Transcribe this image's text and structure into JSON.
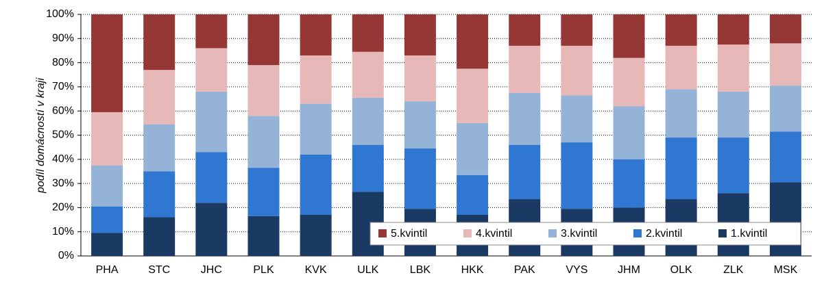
{
  "chart_data": {
    "type": "stacked_bar",
    "y_label": "podíl domácností v kraji",
    "categories": [
      "PHA",
      "STC",
      "JHC",
      "PLK",
      "KVK",
      "ULK",
      "LBK",
      "HKK",
      "PAK",
      "VYS",
      "JHM",
      "OLK",
      "ZLK",
      "MSK"
    ],
    "series": [
      {
        "name": "1.kvintil",
        "color": "#1b3a63",
        "values": [
          9.5,
          16,
          22,
          16.5,
          17,
          26.5,
          19.5,
          17,
          23.5,
          19.5,
          20,
          23.5,
          26,
          30.5
        ]
      },
      {
        "name": "2.kvintil",
        "color": "#2f77d0",
        "values": [
          11,
          19,
          21,
          20,
          25,
          19.5,
          25,
          16.5,
          22.5,
          27.5,
          20,
          25.5,
          23,
          21
        ]
      },
      {
        "name": "3.kvintil",
        "color": "#95b3d7",
        "values": [
          17,
          19.5,
          25,
          21.5,
          21,
          19.5,
          19.5,
          21.5,
          21.5,
          19.5,
          22,
          20,
          19,
          19
        ]
      },
      {
        "name": "4.kvintil",
        "color": "#e6b9b8",
        "values": [
          22,
          22.5,
          18,
          21,
          20,
          19,
          19,
          22.5,
          19.5,
          20.5,
          20,
          18,
          19.5,
          17.5
        ]
      },
      {
        "name": "5.kvintil",
        "color": "#953735",
        "values": [
          40.5,
          23,
          14,
          21,
          17,
          15.5,
          17,
          22.5,
          13,
          13,
          18,
          13,
          12.5,
          12
        ]
      }
    ],
    "ylim": [
      0,
      100
    ],
    "yticks": [
      {
        "value": 0,
        "label": "0%"
      },
      {
        "value": 10,
        "label": "10%"
      },
      {
        "value": 20,
        "label": "20%"
      },
      {
        "value": 30,
        "label": "30%"
      },
      {
        "value": 40,
        "label": "40%"
      },
      {
        "value": 50,
        "label": "50%"
      },
      {
        "value": 60,
        "label": "60%"
      },
      {
        "value": 70,
        "label": "70%"
      },
      {
        "value": 80,
        "label": "80%"
      },
      {
        "value": 90,
        "label": "90%"
      },
      {
        "value": 100,
        "label": "100%"
      }
    ],
    "grid": true
  }
}
